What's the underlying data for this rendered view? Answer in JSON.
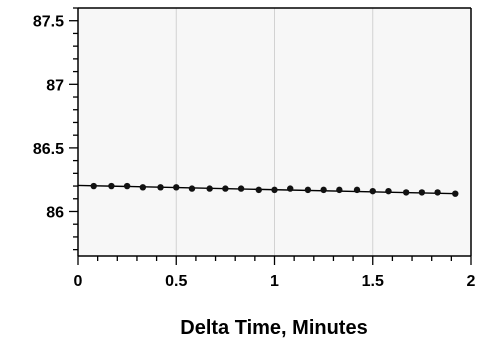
{
  "chart_data": {
    "type": "scatter",
    "title": "",
    "xlabel": "Delta Time, Minutes",
    "ylabel": "",
    "xlim": [
      0,
      2
    ],
    "ylim": [
      85.65,
      87.6
    ],
    "x_ticks": [
      0,
      0.5,
      1,
      1.5,
      2
    ],
    "x_tick_labels": [
      "0",
      "0.5",
      "1",
      "1.5",
      "2"
    ],
    "y_ticks": [
      86,
      86.5,
      87,
      87.5
    ],
    "y_tick_labels": [
      "86",
      "86.5",
      "87",
      "87.5"
    ],
    "x_minor_step": 0.1,
    "y_minor_step": 0.1,
    "grid": "vertical",
    "legend": "none",
    "colors": {
      "plot_background": "#f7f7f7",
      "grid": "#d2d2d2",
      "axis": "#000000",
      "points": "#111111",
      "fit_line": "#000000"
    },
    "series": [
      {
        "x": [
          0.08,
          0.17,
          0.25,
          0.33,
          0.42,
          0.5,
          0.58,
          0.67,
          0.75,
          0.83,
          0.92,
          1.0,
          1.08,
          1.17,
          1.25,
          1.33,
          1.42,
          1.5,
          1.58,
          1.67,
          1.75,
          1.83,
          1.92
        ],
        "y": [
          86.2,
          86.2,
          86.2,
          86.19,
          86.19,
          86.19,
          86.18,
          86.18,
          86.18,
          86.18,
          86.17,
          86.17,
          86.18,
          86.17,
          86.17,
          86.17,
          86.17,
          86.16,
          86.16,
          86.15,
          86.15,
          86.15,
          86.14
        ]
      }
    ],
    "fit_line": {
      "x": [
        0,
        1.93
      ],
      "y": [
        86.205,
        86.14
      ]
    }
  }
}
